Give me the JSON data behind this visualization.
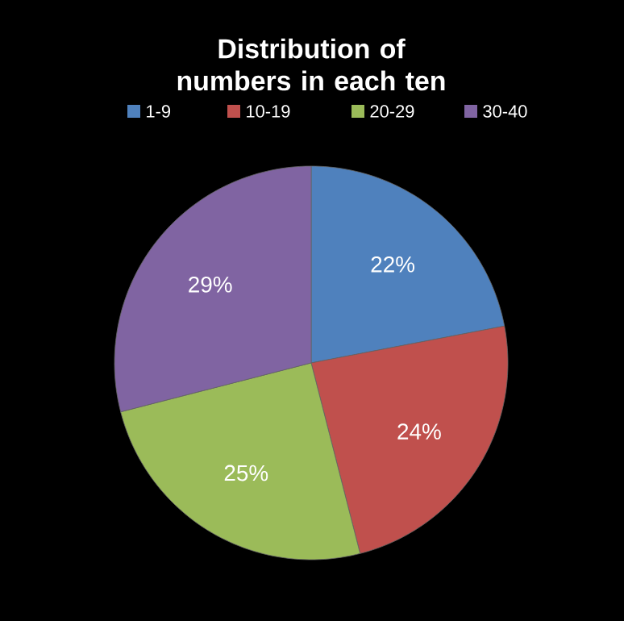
{
  "chart_data": {
    "type": "pie",
    "title": "Distribution of numbers in each ten",
    "categories": [
      "1-9",
      "10-19",
      "20-29",
      "30-40"
    ],
    "values": [
      22,
      24,
      25,
      29
    ],
    "colors": [
      "#4f81bd",
      "#c0504d",
      "#9bbb59",
      "#8064a2"
    ],
    "value_labels": [
      "22%",
      "24%",
      "25%",
      "29%"
    ],
    "legend": "top"
  }
}
